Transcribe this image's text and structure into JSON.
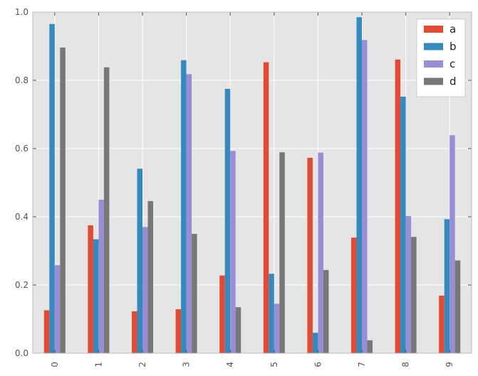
{
  "chart_data": {
    "type": "bar",
    "title": "",
    "xlabel": "",
    "ylabel": "",
    "categories": [
      "0",
      "1",
      "2",
      "3",
      "4",
      "5",
      "6",
      "7",
      "8",
      "9"
    ],
    "ylim": [
      0,
      1.0
    ],
    "yticks": [
      0.0,
      0.2,
      0.4,
      0.6,
      0.8,
      1.0
    ],
    "ytick_labels": [
      "0.0",
      "0.2",
      "0.4",
      "0.6",
      "0.8",
      "1.0"
    ],
    "grid": true,
    "legend_position": "top-right",
    "style": "ggplot",
    "series": [
      {
        "name": "a",
        "color": "#E24A33",
        "values": [
          0.126,
          0.375,
          0.123,
          0.129,
          0.228,
          0.853,
          0.573,
          0.339,
          0.861,
          0.169
        ]
      },
      {
        "name": "b",
        "color": "#348ABD",
        "values": [
          0.965,
          0.334,
          0.541,
          0.859,
          0.775,
          0.233,
          0.06,
          0.985,
          0.752,
          0.393
        ]
      },
      {
        "name": "c",
        "color": "#988ED5",
        "values": [
          0.258,
          0.45,
          0.37,
          0.818,
          0.593,
          0.145,
          0.588,
          0.918,
          0.402,
          0.639
        ]
      },
      {
        "name": "d",
        "color": "#777777",
        "values": [
          0.896,
          0.838,
          0.446,
          0.35,
          0.135,
          0.589,
          0.244,
          0.038,
          0.341,
          0.272
        ]
      }
    ]
  }
}
